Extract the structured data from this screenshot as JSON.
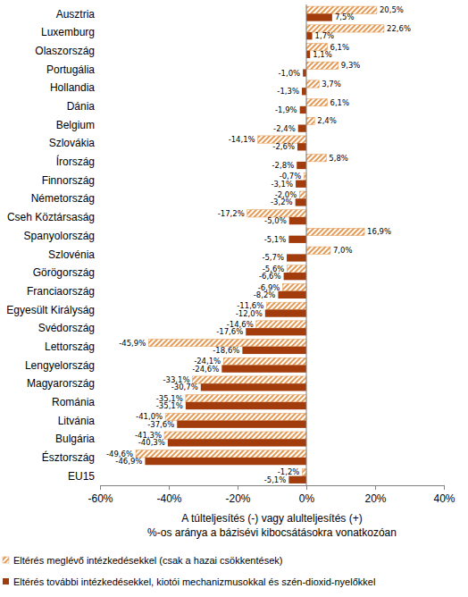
{
  "chart_data": {
    "type": "bar",
    "orientation": "horizontal",
    "data_labels": true,
    "grid": false,
    "tick_labels": "x",
    "legend": "bottom-left",
    "xlabel": [
      "A túlteljesítés (-) vagy alulteljesítés (+)",
      "%-os aránya a bázisévi kibocsátásokra vonatkozóan"
    ],
    "categories": [
      "Ausztria",
      "Luxemburg",
      "Olaszország",
      "Portugália",
      "Hollandia",
      "Dánia",
      "Belgium",
      "Szlovákia",
      "Írország",
      "Finnország",
      "Németország",
      "Cseh Köztársaság",
      "Spanyolország",
      "Szlovénia",
      "Görögország",
      "Franciaország",
      "Egyesült Királyság",
      "Svédország",
      "Lettország",
      "Lengyelország",
      "Magyarország",
      "Románia",
      "Litvánia",
      "Bulgária",
      "Észtország",
      "EU15"
    ],
    "xlim": [
      -60,
      40
    ],
    "xticks": [
      {
        "value": -60,
        "label": "-60%"
      },
      {
        "value": -40,
        "label": "-40%"
      },
      {
        "value": -20,
        "label": "-20%"
      },
      {
        "value": 0,
        "label": "0%"
      },
      {
        "value": 20,
        "label": "20%"
      },
      {
        "value": 40,
        "label": "40%"
      }
    ],
    "series": [
      {
        "name": "Eltérés meglévő intézkedésekkel (csak a hazai csökkentések)",
        "color": "#e39a55",
        "values": [
          20.5,
          22.6,
          6.1,
          9.3,
          3.7,
          6.1,
          2.4,
          -14.1,
          5.8,
          -0.7,
          -2.0,
          -17.2,
          16.9,
          7.0,
          -5.6,
          -6.9,
          -11.6,
          -14.6,
          -45.9,
          -24.1,
          -33.1,
          -35.1,
          -41.0,
          -41.3,
          -49.6,
          -1.2
        ],
        "value_labels": [
          "20,5%",
          "22,6%",
          "6,1%",
          "9,3%",
          "3,7%",
          "6,1%",
          "2,4%",
          "-14,1%",
          "5,8%",
          "-0,7%",
          "-2,0%",
          "-17,2%",
          "16,9%",
          "7,0%",
          "-5,6%",
          "-6,9%",
          "-11,6%",
          "-14,6%",
          "-45,9%",
          "-24,1%",
          "-33,1%",
          "-35,1%",
          "-41,0%",
          "-41,3%",
          "-49,6%",
          "-1,2%"
        ]
      },
      {
        "name": "Eltérés további intézkedésekkel, kiotói mechanizmusokkal és szén-dioxid-nyelőkkel",
        "color": "#a23c0c",
        "values": [
          7.5,
          1.7,
          1.1,
          -1.0,
          -1.3,
          -1.9,
          -2.4,
          -2.6,
          -2.8,
          -3.1,
          -3.2,
          -5.0,
          -5.1,
          -5.7,
          -6.6,
          -8.2,
          -12.0,
          -17.6,
          -18.6,
          -24.6,
          -30.7,
          -35.1,
          -37.6,
          -40.3,
          -46.9,
          -5.1
        ],
        "value_labels": [
          "7,5%",
          "1,7%",
          "1,1%",
          "-1,0%",
          "-1,3%",
          "-1,9%",
          "-2,4%",
          "-2,6%",
          "-2,8%",
          "-3,1%",
          "-3,2%",
          "-5,0%",
          "-5,1%",
          "-5,7%",
          "-6,6%",
          "-8,2%",
          "-12,0%",
          "-17,6%",
          "-18,6%",
          "-24,6%",
          "-30,7%",
          "-35,1%",
          "-37,6%",
          "-40,3%",
          "-46,9%",
          "-5,1%"
        ]
      }
    ]
  }
}
